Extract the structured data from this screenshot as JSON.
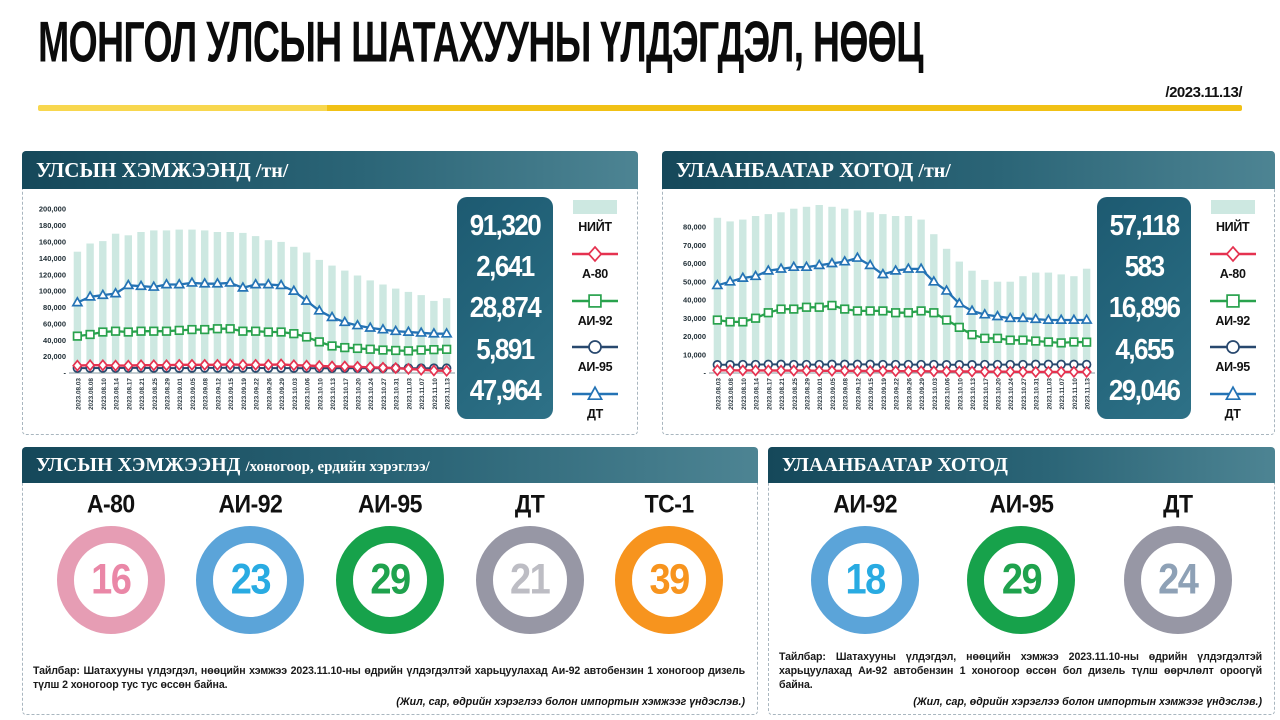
{
  "page": {
    "title": "МОНГОЛ УЛСЫН ШАТАХУУНЫ ҮЛДЭГДЭЛ, НӨӨЦ",
    "date": "/2023.11.13/"
  },
  "colors": {
    "bar": "#cde8e1",
    "a80": "#e53250",
    "ai92": "#29a24d",
    "ai95": "#28486e",
    "dt": "#2473b5",
    "header_start": "#15485a",
    "header_end": "#4d8493",
    "totals_bg": "#1d5a71",
    "divider_yellow": "#f1c115"
  },
  "legend": [
    {
      "key": "niit",
      "label": "НИЙТ",
      "marker": "bar",
      "color": "bar"
    },
    {
      "key": "a80",
      "label": "А-80",
      "marker": "diamond",
      "color": "a80"
    },
    {
      "key": "ai92",
      "label": "АИ-92",
      "marker": "square",
      "color": "ai92"
    },
    {
      "key": "ai95",
      "label": "АИ-95",
      "marker": "circle",
      "color": "ai95"
    },
    {
      "key": "dt",
      "label": "ДТ",
      "marker": "triangle",
      "color": "dt"
    }
  ],
  "chart_data": [
    {
      "type": "bar+line",
      "header": "УЛСЫН ХЭМЖЭЭНД",
      "unit": "/тн/",
      "ylim": [
        0,
        205000
      ],
      "yticks": [
        {
          "label": "200,000",
          "value": 200000
        },
        {
          "label": "180,000",
          "value": 180000
        },
        {
          "label": "160,000",
          "value": 160000
        },
        {
          "label": "140,000",
          "value": 140000
        },
        {
          "label": "120,000",
          "value": 120000
        },
        {
          "label": "100,000",
          "value": 100000
        },
        {
          "label": "80,000",
          "value": 80000
        },
        {
          "label": "60,000",
          "value": 60000
        },
        {
          "label": "40,000",
          "value": 40000
        },
        {
          "label": "20,000",
          "value": 20000
        },
        {
          "label": "-",
          "value": 0
        }
      ],
      "x": [
        "2023.08.03",
        "2023.08.08",
        "2023.08.10",
        "2023.08.14",
        "2023.08.17",
        "2023.08.21",
        "2023.08.25",
        "2023.08.29",
        "2023.09.01",
        "2023.09.05",
        "2023.09.08",
        "2023.09.12",
        "2023.09.15",
        "2023.09.19",
        "2023.09.22",
        "2023.09.26",
        "2023.09.29",
        "2023.10.03",
        "2023.10.06",
        "2023.10.10",
        "2023.10.13",
        "2023.10.17",
        "2023.10.20",
        "2023.10.24",
        "2023.10.27",
        "2023.10.31",
        "2023.11.03",
        "2023.11.07",
        "2023.11.10",
        "2023.11.13"
      ],
      "bar_series": {
        "key": "niit",
        "name": "НИЙТ",
        "color": "bar",
        "values": [
          148000,
          158000,
          161000,
          170000,
          168000,
          172000,
          174000,
          174000,
          175000,
          175000,
          174000,
          172000,
          172000,
          171000,
          167000,
          162000,
          160000,
          154000,
          147000,
          138000,
          131000,
          125000,
          119000,
          113000,
          108000,
          103000,
          99000,
          95000,
          88000,
          91320
        ]
      },
      "line_series": [
        {
          "key": "ai95",
          "name": "АИ-95",
          "marker": "circle",
          "color": "ai95",
          "width": 2.0,
          "values": [
            6000,
            6000,
            6100,
            6100,
            6200,
            6200,
            6100,
            6000,
            6000,
            6100,
            6200,
            6200,
            6300,
            6200,
            6100,
            6000,
            6000,
            6000,
            5900,
            5900,
            5800,
            5800,
            5900,
            5900,
            5900,
            5900,
            5900,
            5900,
            5900,
            5891
          ]
        },
        {
          "key": "a80",
          "name": "А-80",
          "marker": "diamond",
          "color": "a80",
          "width": 2.4,
          "values": [
            9000,
            9500,
            9500,
            9000,
            9000,
            9500,
            9500,
            9500,
            10000,
            10000,
            10000,
            10000,
            10500,
            10000,
            10000,
            10000,
            10500,
            9500,
            9000,
            8500,
            8000,
            8000,
            7500,
            7000,
            6500,
            6000,
            5000,
            4000,
            3000,
            2641
          ]
        },
        {
          "key": "ai92",
          "name": "АИ-92",
          "marker": "square",
          "color": "ai92",
          "width": 2.3,
          "values": [
            45000,
            47000,
            50000,
            51000,
            50000,
            51000,
            51000,
            51000,
            52000,
            53000,
            53000,
            54000,
            54000,
            51000,
            51000,
            50000,
            50000,
            48000,
            44000,
            38000,
            33000,
            31000,
            30000,
            29000,
            28000,
            27500,
            27000,
            28000,
            28500,
            28874
          ]
        },
        {
          "key": "dt",
          "name": "ДТ",
          "marker": "triangle",
          "color": "dt",
          "width": 2.3,
          "values": [
            86000,
            93000,
            95000,
            97000,
            107000,
            106000,
            105000,
            108000,
            108000,
            110000,
            109000,
            109000,
            110000,
            104000,
            108000,
            108000,
            107000,
            100000,
            88000,
            76000,
            68000,
            62000,
            58000,
            55000,
            53000,
            51000,
            50000,
            49000,
            48000,
            47964
          ]
        }
      ],
      "totals": [
        {
          "key": "niit",
          "label": "НИЙТ",
          "value": "91,320"
        },
        {
          "key": "a80",
          "label": "А-80",
          "value": "2,641"
        },
        {
          "key": "ai92",
          "label": "АИ-92",
          "value": "28,874"
        },
        {
          "key": "ai95",
          "label": "АИ-95",
          "value": "5,891"
        },
        {
          "key": "dt",
          "label": "ДТ",
          "value": "47,964"
        }
      ]
    },
    {
      "type": "bar+line",
      "header": "УЛААНБААТАР ХОТОД",
      "unit": "/тн/",
      "ylim": [
        0,
        92000
      ],
      "yticks": [
        {
          "label": "80,000",
          "value": 80000
        },
        {
          "label": "70,000",
          "value": 70000
        },
        {
          "label": "60,000",
          "value": 60000
        },
        {
          "label": "50,000",
          "value": 50000
        },
        {
          "label": "40,000",
          "value": 40000
        },
        {
          "label": "30,000",
          "value": 30000
        },
        {
          "label": "20,000",
          "value": 20000
        },
        {
          "label": "10,000",
          "value": 10000
        },
        {
          "label": "-",
          "value": 0
        }
      ],
      "x": [
        "2023.08.03",
        "2023.08.08",
        "2023.08.10",
        "2023.08.14",
        "2023.08.17",
        "2023.08.21",
        "2023.08.25",
        "2023.08.29",
        "2023.09.01",
        "2023.09.05",
        "2023.09.08",
        "2023.09.12",
        "2023.09.15",
        "2023.09.19",
        "2023.09.22",
        "2023.09.26",
        "2023.09.29",
        "2023.10.03",
        "2023.10.06",
        "2023.10.10",
        "2023.10.13",
        "2023.10.17",
        "2023.10.20",
        "2023.10.24",
        "2023.10.27",
        "2023.10.31",
        "2023.11.03",
        "2023.11.07",
        "2023.11.10",
        "2023.11.13"
      ],
      "bar_series": {
        "key": "niit",
        "name": "НИЙТ",
        "color": "bar",
        "values": [
          85000,
          83000,
          84000,
          86000,
          87000,
          88000,
          90000,
          91000,
          92000,
          91000,
          90000,
          89000,
          88000,
          87000,
          86000,
          86000,
          84000,
          76000,
          68000,
          61000,
          56000,
          51000,
          50000,
          50000,
          53000,
          55000,
          55000,
          54000,
          53000,
          57118
        ]
      },
      "line_series": [
        {
          "key": "ai95",
          "name": "АИ-95",
          "marker": "circle",
          "color": "ai95",
          "width": 2.0,
          "values": [
            4500,
            4500,
            4600,
            4600,
            4700,
            4700,
            4600,
            4600,
            4600,
            4700,
            4700,
            4700,
            4700,
            4600,
            4600,
            4600,
            4600,
            4600,
            4500,
            4500,
            4500,
            4600,
            4600,
            4600,
            4600,
            4700,
            4700,
            4700,
            4700,
            4655
          ]
        },
        {
          "key": "a80",
          "name": "А-80",
          "marker": "diamond",
          "color": "a80",
          "width": 2.4,
          "values": [
            1500,
            1500,
            1400,
            1400,
            1400,
            1300,
            1300,
            1300,
            1200,
            1200,
            1200,
            1100,
            1100,
            1100,
            1000,
            1000,
            1000,
            900,
            900,
            800,
            800,
            700,
            700,
            700,
            600,
            600,
            600,
            600,
            600,
            583
          ]
        },
        {
          "key": "ai92",
          "name": "АИ-92",
          "marker": "square",
          "color": "ai92",
          "width": 2.3,
          "values": [
            29000,
            28000,
            28000,
            30000,
            33000,
            35000,
            35000,
            36000,
            36000,
            37000,
            35000,
            34000,
            34000,
            34000,
            33000,
            33000,
            34000,
            33000,
            29000,
            25000,
            21000,
            19000,
            19000,
            18000,
            18000,
            17500,
            17000,
            16500,
            17000,
            16896
          ]
        },
        {
          "key": "dt",
          "name": "ДТ",
          "marker": "triangle",
          "color": "dt",
          "width": 2.3,
          "values": [
            48000,
            50000,
            52000,
            53000,
            56000,
            57000,
            58000,
            58000,
            59000,
            60000,
            61000,
            63000,
            59000,
            54000,
            56000,
            57000,
            57000,
            50000,
            45000,
            38000,
            34000,
            32000,
            31000,
            30000,
            30000,
            29500,
            29000,
            29000,
            29000,
            29046
          ]
        }
      ],
      "totals": [
        {
          "key": "niit",
          "label": "НИЙТ",
          "value": "57,118"
        },
        {
          "key": "a80",
          "label": "А-80",
          "value": "583"
        },
        {
          "key": "ai92",
          "label": "АИ-92",
          "value": "16,896"
        },
        {
          "key": "ai95",
          "label": "АИ-95",
          "value": "4,655"
        },
        {
          "key": "dt",
          "label": "ДТ",
          "value": "29,046"
        }
      ]
    }
  ],
  "daily_panels": [
    {
      "title": "УЛСЫН ХЭМЖЭЭНД",
      "subtitle": "/хоногоор, ердийн хэрэглээ/",
      "items": [
        {
          "key": "a80",
          "label": "А-80",
          "value": "16",
          "ring": "#e69db4",
          "num": "#ea87a7"
        },
        {
          "key": "ai92",
          "label": "АИ-92",
          "value": "23",
          "ring": "#5ba4d9",
          "num": "#29abe2"
        },
        {
          "key": "ai95",
          "label": "АИ-95",
          "value": "29",
          "ring": "#17a24b",
          "num": "#1fa24d"
        },
        {
          "key": "dt",
          "label": "ДТ",
          "value": "21",
          "ring": "#9797a5",
          "num": "#bdbdc4"
        },
        {
          "key": "ts1",
          "label": "ТС-1",
          "value": "39",
          "ring": "#f7941e",
          "num": "#f7941e"
        }
      ],
      "footnote": "Тайлбар: Шатахууны үлдэгдэл, нөөцийн хэмжээ 2023.11.10-ны өдрийн үлдэгдэлтэй харьцуулахад Аи-92 автобензин 1 хоногоор дизель түлш 2 хоногоор тус тус өссөн байна.",
      "source": "(Жил, сар, өдрийн хэрэглээ болон импортын хэмжээг үндэслэв.)"
    },
    {
      "title": "УЛААНБААТАР ХОТОД",
      "subtitle": "",
      "items": [
        {
          "key": "ai92",
          "label": "АИ-92",
          "value": "18",
          "ring": "#5ba4d9",
          "num": "#29abe2"
        },
        {
          "key": "ai95",
          "label": "АИ-95",
          "value": "29",
          "ring": "#17a24b",
          "num": "#1fa24d"
        },
        {
          "key": "dt",
          "label": "ДТ",
          "value": "24",
          "ring": "#9797a5",
          "num": "#8ea1b6"
        }
      ],
      "footnote": "Тайлбар: Шатахууны үлдэгдэл, нөөцийн хэмжээ 2023.11.10-ны өдрийн үлдэгдэлтэй харьцуулахад Аи-92 автобензин 1 хоногоор өссөн бол дизель түлш өөрчлөлт ороогүй байна.",
      "source": "(Жил, сар, өдрийн хэрэглээ болон импортын хэмжээг үндэслэв.)"
    }
  ]
}
